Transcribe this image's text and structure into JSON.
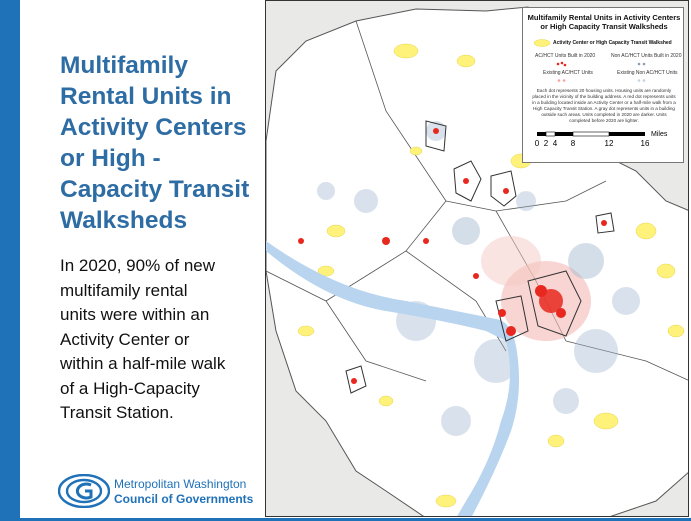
{
  "slide": {
    "title_lines": [
      "Multifamily",
      "Rental Units in",
      "Activity Centers",
      "or High -",
      "Capacity Transit",
      "Walksheds"
    ],
    "body_lines": [
      "In 2020, 90% of new",
      "multifamily rental",
      "units were within an",
      "Activity Center or",
      "within a half-mile walk",
      "of a High-Capacity",
      "Transit Station."
    ],
    "accent_color": "#1f71b8",
    "title_color": "#2e6ca4"
  },
  "logo": {
    "line1": "Metropolitan Washington",
    "line2": "Council of Governments",
    "icon": "cog-logo-icon"
  },
  "map": {
    "legend": {
      "title_lines": [
        "Multifamily Rental Units in Activity Centers",
        "or High Capacity Transit Walksheds"
      ],
      "swatch_label": "Activity Center or High  Capacity Transit Walkshed",
      "built_in_ac": "AC/HCT Units Built in 2020",
      "built_non_ac": "Non AC/HCT Units Built in 2020",
      "existing_ac": "Existing AC/HCT Units",
      "existing_non_ac": "Existing Non AC/HCT Units",
      "note": "Each dot represents 20 housing units. Housing units are randomly placed in the vicinity of the building address. A red dot represents units in a building located inside an Activity Center or a half-mile walk from a High Capacity Transit Station. A gray dot represents units in a building outside such areas. Units completed in 2020 are darker. Units completed before 2020 are lighter.",
      "scale_unit": "Miles",
      "scale_ticks": [
        "0",
        "2",
        "4",
        "8",
        "12",
        "16"
      ]
    },
    "colors": {
      "activity_center": "#fff27a",
      "ac_units": "#e8281e",
      "non_ac_units": "#9fb6cf",
      "water": "#b9d4ee"
    }
  }
}
